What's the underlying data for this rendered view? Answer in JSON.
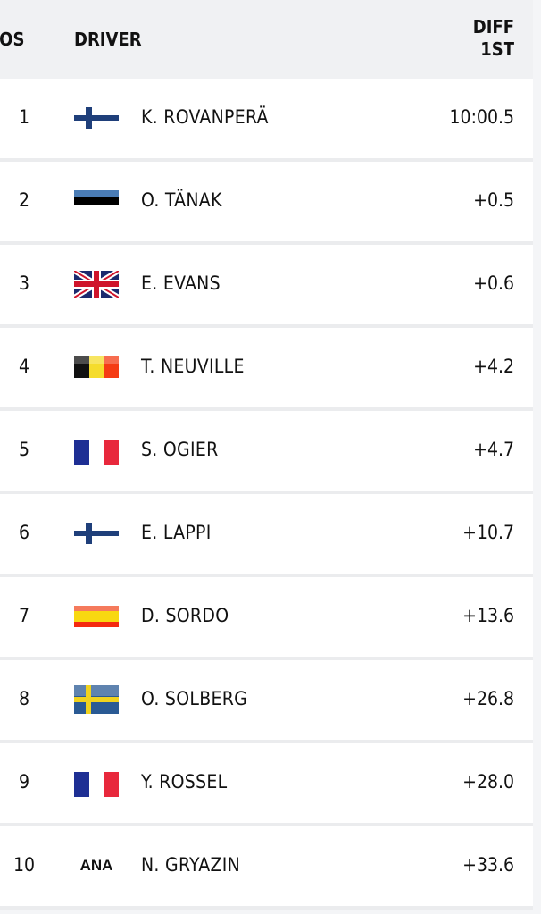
{
  "header": {
    "pos": "POS",
    "driver": "DRIVER",
    "diff_line1": "DIFF",
    "diff_line2": "1ST"
  },
  "rows": [
    {
      "pos": "1",
      "flag": "finland",
      "driver": "K. ROVANPERÄ",
      "diff": "10:00.5"
    },
    {
      "pos": "2",
      "flag": "estonia",
      "driver": "O. TÄNAK",
      "diff": "+0.5"
    },
    {
      "pos": "3",
      "flag": "united-kingdom",
      "driver": "E. EVANS",
      "diff": "+0.6"
    },
    {
      "pos": "4",
      "flag": "belgium",
      "driver": "T. NEUVILLE",
      "diff": "+4.2"
    },
    {
      "pos": "5",
      "flag": "france",
      "driver": "S. OGIER",
      "diff": "+4.7"
    },
    {
      "pos": "6",
      "flag": "finland",
      "driver": "E. LAPPI",
      "diff": "+10.7"
    },
    {
      "pos": "7",
      "flag": "spain",
      "driver": "D. SORDO",
      "diff": "+13.6"
    },
    {
      "pos": "8",
      "flag": "sweden",
      "driver": "O. SOLBERG",
      "diff": "+26.8"
    },
    {
      "pos": "9",
      "flag": "france",
      "driver": "Y. ROSSEL",
      "diff": "+28.0"
    },
    {
      "pos": "10",
      "flag": "ana",
      "flag_text": "ANA",
      "driver": "N. GRYAZIN",
      "diff": "+33.6"
    }
  ]
}
